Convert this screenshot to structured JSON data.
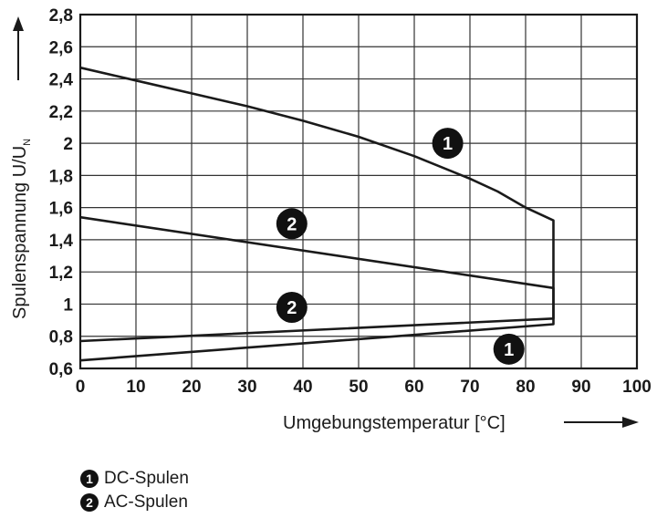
{
  "chart_data": {
    "type": "line",
    "xlabel": "Umgebungstemperatur [°C]",
    "ylabel_main": "Spulenspannung U/U",
    "ylabel_sub": "N",
    "xlim": [
      0,
      100
    ],
    "ylim": [
      0.6,
      2.8
    ],
    "x_ticks": [
      0,
      10,
      20,
      30,
      40,
      50,
      60,
      70,
      80,
      90,
      100
    ],
    "y_ticks": [
      0.6,
      0.8,
      1,
      1.2,
      1.4,
      1.6,
      1.8,
      2,
      2.2,
      2.4,
      2.6,
      2.8
    ],
    "y_tick_labels": [
      "0,6",
      "0,8",
      "1",
      "1,2",
      "1,4",
      "1,6",
      "1,8",
      "2",
      "2,2",
      "2,4",
      "2,6",
      "2,8"
    ],
    "grid": true,
    "series": [
      {
        "name": "DC-Spulen",
        "marker": "1",
        "color": "#1a1a1a",
        "points": [
          [
            0,
            0.65
          ],
          [
            85,
            0.875
          ],
          [
            85,
            1.52
          ],
          [
            80,
            1.6
          ],
          [
            75,
            1.7
          ],
          [
            70,
            1.78
          ],
          [
            60,
            1.92
          ],
          [
            50,
            2.04
          ],
          [
            40,
            2.14
          ],
          [
            30,
            2.23
          ],
          [
            20,
            2.31
          ],
          [
            10,
            2.39
          ],
          [
            0,
            2.47
          ]
        ],
        "label_positions": [
          [
            66,
            2.0
          ],
          [
            77,
            0.72
          ]
        ]
      },
      {
        "name": "AC-Spulen",
        "marker": "2",
        "color": "#1a1a1a",
        "points": [
          [
            0,
            0.77
          ],
          [
            85,
            0.91
          ],
          [
            85,
            1.1
          ],
          [
            0,
            1.54
          ]
        ],
        "label_positions": [
          [
            38,
            1.5
          ],
          [
            38,
            0.98
          ]
        ]
      }
    ],
    "legend": [
      {
        "marker": "1",
        "text": "DC-Spulen"
      },
      {
        "marker": "2",
        "text": "AC-Spulen"
      }
    ],
    "legend_position": "bottom-left"
  }
}
